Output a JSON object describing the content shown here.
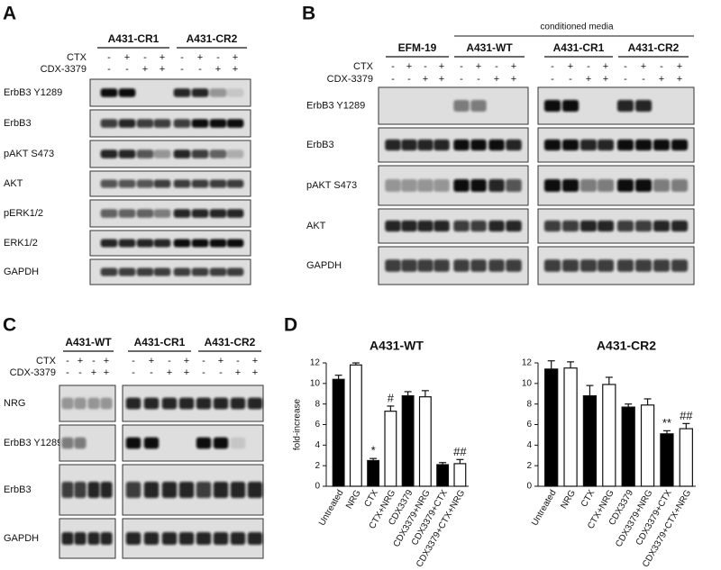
{
  "panel_a": {
    "label": "A",
    "groups": [
      "A431-CR1",
      "A431-CR2"
    ],
    "treatments": [
      {
        "name": "CTX",
        "signs": [
          "-",
          "+",
          "-",
          "+",
          "-",
          "+",
          "-",
          "+"
        ]
      },
      {
        "name": "CDX-3379",
        "signs": [
          "-",
          "-",
          "+",
          "+",
          "-",
          "-",
          "+",
          "+"
        ]
      }
    ],
    "blots": [
      "ErbB3 Y1289",
      "ErbB3",
      "pAKT S473",
      "AKT",
      "pERK1/2",
      "ERK1/2",
      "GAPDH"
    ]
  },
  "panel_b": {
    "label": "B",
    "note": "conditioned media",
    "groups": [
      "EFM-19",
      "A431-WT",
      "A431-CR1",
      "A431-CR2"
    ],
    "treatments": [
      {
        "name": "CTX",
        "signs": [
          "-",
          "+",
          "-",
          "+",
          "-",
          "+",
          "-",
          "+",
          "-",
          "+",
          "-",
          "+",
          "-",
          "+",
          "-",
          "+"
        ]
      },
      {
        "name": "CDX-3379",
        "signs": [
          "-",
          "-",
          "+",
          "+",
          "-",
          "-",
          "+",
          "+",
          "-",
          "-",
          "+",
          "+",
          "-",
          "-",
          "+",
          "+"
        ]
      }
    ],
    "blots": [
      "ErbB3 Y1289",
      "ErbB3",
      "pAKT S473",
      "AKT",
      "GAPDH"
    ]
  },
  "panel_c": {
    "label": "C",
    "groups": [
      "A431-WT",
      "A431-CR1",
      "A431-CR2"
    ],
    "treatments": [
      {
        "name": "CTX",
        "signs": [
          "-",
          "+",
          "-",
          "+",
          "-",
          "+",
          "-",
          "+",
          "-",
          "+",
          "-",
          "+"
        ]
      },
      {
        "name": "CDX-3379",
        "signs": [
          "-",
          "-",
          "+",
          "+",
          "-",
          "-",
          "+",
          "+",
          "-",
          "-",
          "+",
          "+"
        ]
      }
    ],
    "blots": [
      "NRG",
      "ErbB3 Y1289",
      "ErbB3",
      "GAPDH"
    ]
  },
  "panel_d": {
    "label": "D"
  },
  "chart_data": [
    {
      "type": "bar",
      "title": "A431-WT",
      "y_label": "fold-increase",
      "categories": [
        "Untreated",
        "NRG",
        "CTX",
        "CTX+NRG",
        "CDX3379",
        "CDX3379+NRG",
        "CDX3379+CTX",
        "CDX3379+CTX+NRG"
      ],
      "values": [
        10.4,
        11.8,
        2.5,
        7.3,
        8.8,
        8.7,
        2.1,
        2.2
      ],
      "errors": [
        0.4,
        0.2,
        0.2,
        0.5,
        0.4,
        0.6,
        0.2,
        0.4
      ],
      "colors": [
        "#000000",
        "#ffffff",
        "#000000",
        "#ffffff",
        "#000000",
        "#ffffff",
        "#000000",
        "#ffffff"
      ],
      "annotations": [
        null,
        null,
        "*",
        "#",
        null,
        null,
        null,
        "##"
      ],
      "ylim": [
        0,
        12
      ],
      "yticks": [
        0,
        2,
        4,
        6,
        8,
        10,
        12
      ]
    },
    {
      "type": "bar",
      "title": "A431-CR2",
      "categories": [
        "Untreated",
        "NRG",
        "CTX",
        "CTX+NRG",
        "CDX3379",
        "CDX3379+NRG",
        "CDX3379+CTX",
        "CDX3379+CTX+NRG"
      ],
      "values": [
        11.4,
        11.5,
        8.8,
        9.9,
        7.7,
        7.9,
        5.1,
        5.6
      ],
      "errors": [
        0.8,
        0.6,
        1.0,
        0.7,
        0.3,
        0.6,
        0.3,
        0.5
      ],
      "colors": [
        "#000000",
        "#ffffff",
        "#000000",
        "#ffffff",
        "#000000",
        "#ffffff",
        "#000000",
        "#ffffff"
      ],
      "annotations": [
        null,
        null,
        null,
        null,
        null,
        null,
        "**",
        "##"
      ],
      "ylim": [
        0,
        12
      ],
      "yticks": [
        0,
        2,
        4,
        6,
        8,
        10,
        12
      ]
    }
  ]
}
